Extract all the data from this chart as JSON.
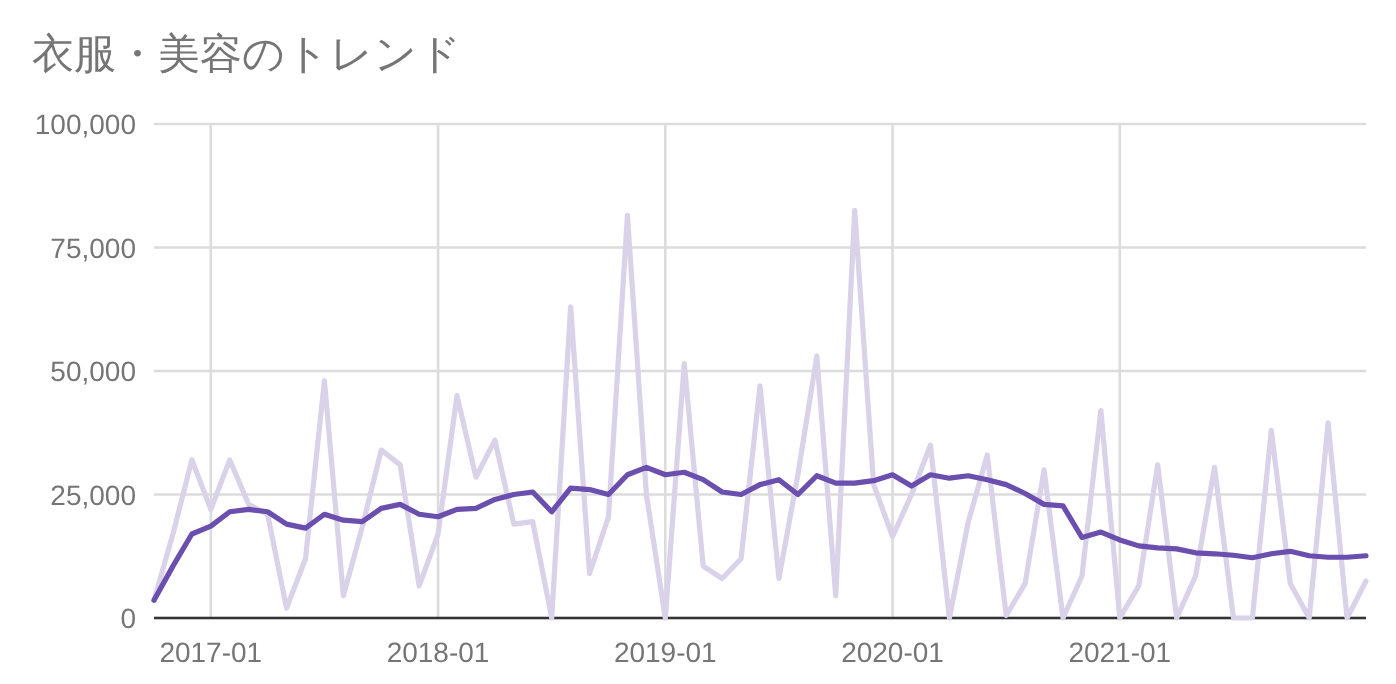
{
  "chart_data": {
    "type": "line",
    "title": "衣服・美容のトレンド",
    "x": [
      "2016-10",
      "2016-11",
      "2016-12",
      "2017-01",
      "2017-02",
      "2017-03",
      "2017-04",
      "2017-05",
      "2017-06",
      "2017-07",
      "2017-08",
      "2017-09",
      "2017-10",
      "2017-11",
      "2017-12",
      "2018-01",
      "2018-02",
      "2018-03",
      "2018-04",
      "2018-05",
      "2018-06",
      "2018-07",
      "2018-08",
      "2018-09",
      "2018-10",
      "2018-11",
      "2018-12",
      "2019-01",
      "2019-02",
      "2019-03",
      "2019-04",
      "2019-05",
      "2019-06",
      "2019-07",
      "2019-08",
      "2019-09",
      "2019-10",
      "2019-11",
      "2019-12",
      "2020-01",
      "2020-02",
      "2020-03",
      "2020-04",
      "2020-05",
      "2020-06",
      "2020-07",
      "2020-08",
      "2020-09",
      "2020-10",
      "2020-11",
      "2020-12",
      "2021-01",
      "2021-02",
      "2021-03",
      "2021-04",
      "2021-05",
      "2021-06",
      "2021-07",
      "2021-08",
      "2021-09",
      "2021-10",
      "2021-11",
      "2021-12",
      "2022-01",
      "2022-02"
    ],
    "series": [
      {
        "color": "#d9d2e9",
        "values": [
          3600,
          17000,
          32000,
          22000,
          32000,
          23000,
          21000,
          2000,
          12000,
          48000,
          4500,
          18500,
          34000,
          31000,
          6500,
          17000,
          45000,
          28500,
          36000,
          19000,
          19500,
          0,
          63000,
          9000,
          20500,
          81500,
          25000,
          0,
          51500,
          10500,
          8000,
          12000,
          47000,
          8000,
          29000,
          53000,
          4500,
          82500,
          27000,
          16500,
          25000,
          35000,
          0,
          19500,
          33000,
          500,
          7000,
          30000,
          0,
          8500,
          42000,
          0,
          6500,
          31000,
          0,
          8500,
          30500,
          0,
          0,
          38000,
          7000,
          0,
          39500,
          0,
          7500
        ]
      },
      {
        "color": "#6a4fae",
        "values": [
          3600,
          10500,
          17000,
          18600,
          21500,
          22000,
          21500,
          19000,
          18200,
          21000,
          19800,
          19500,
          22200,
          23000,
          21000,
          20500,
          22000,
          22200,
          24000,
          25000,
          25500,
          21500,
          26300,
          26000,
          25000,
          29000,
          30500,
          29000,
          29500,
          28000,
          25500,
          25000,
          27000,
          28000,
          25000,
          28800,
          27300,
          27300,
          27800,
          29000,
          26700,
          29000,
          28300,
          28800,
          28000,
          27000,
          25200,
          23000,
          22700,
          16300,
          17400,
          15800,
          14600,
          14200,
          14000,
          13200,
          13000,
          12700,
          12200,
          13000,
          13500,
          12600,
          12300,
          12300,
          12600
        ]
      }
    ],
    "xlim": [
      "2016-10",
      "2022-02"
    ],
    "xticks": [
      "2017-01",
      "2018-01",
      "2019-01",
      "2020-01",
      "2021-01"
    ],
    "ylim": [
      0,
      100000
    ],
    "yticks": [
      {
        "value": 0,
        "label": "0"
      },
      {
        "value": 25000,
        "label": "25,000"
      },
      {
        "value": 50000,
        "label": "50,000"
      },
      {
        "value": 75000,
        "label": "75,000"
      },
      {
        "value": 100000,
        "label": "100,000"
      }
    ],
    "grid": true
  }
}
